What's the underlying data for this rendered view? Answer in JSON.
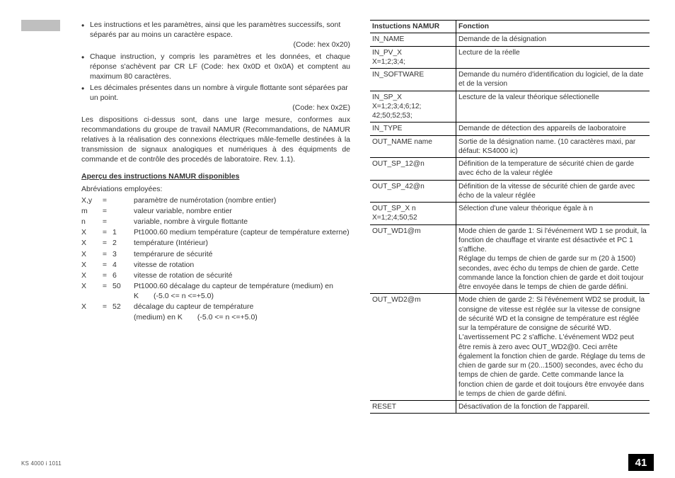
{
  "footer": {
    "doc_id": "KS 4000 i 1011",
    "page_number": "41"
  },
  "left": {
    "bullets": [
      {
        "text": "Les instructions et les paramètres, ainsi que les paramètres successifs, sont séparés par au moins un caractère espace.",
        "code": "(Code: hex 0x20)"
      },
      {
        "text": "Chaque instruction, y compris les paramètres et les données, et chaque réponse s'achèvent par CR LF (Code: hex 0x0D et 0x0A) et comptent au maximum 80 caractères.",
        "code": ""
      },
      {
        "text": "Les décimales présentes dans un nombre à virgule flottante sont séparées par un point.",
        "code": "(Code: hex 0x2E)"
      }
    ],
    "paragraph": "Les dispositions ci-dessus sont, dans une large mesure, conformes aux recommandations du groupe de travail NAMUR (Recommandations, de NAMUR relatives à la réalisation des connexions électriques mâle-femelle destinées à la transmission de signaux analogiques et numériques à des équipments de commande et de contrôle des procedés de laboratoire. Rev. 1.1).",
    "heading": "Aperçu des instructions NAMUR disponibles",
    "abbr_intro": "Abréviations employées:",
    "abbr_rows": [
      {
        "c1": "X,y",
        "c2": "=",
        "c3": "",
        "c4": "paramètre de numérotation (nombre entier)"
      },
      {
        "c1": "m",
        "c2": "=",
        "c3": "",
        "c4": "valeur variable, nombre entier"
      },
      {
        "c1": "n",
        "c2": "=",
        "c3": "",
        "c4": "variable, nombre à virgule flottante"
      },
      {
        "c1": "X",
        "c2": "=",
        "c3": "1",
        "c4": "Pt1000.60 medium température (capteur de température externe)"
      },
      {
        "c1": "X",
        "c2": "=",
        "c3": "2",
        "c4": "température (Intérieur)"
      },
      {
        "c1": "X",
        "c2": "=",
        "c3": "3",
        "c4": "tempérarure de sécurité"
      },
      {
        "c1": "X",
        "c2": "=",
        "c3": "4",
        "c4": "vitesse de rotation"
      },
      {
        "c1": "X",
        "c2": "=",
        "c3": "6",
        "c4": "vitesse de rotation de sécurité"
      },
      {
        "c1": "X",
        "c2": "=",
        "c3": "50",
        "c4": "Pt1000.60 décalage du capteur de température (medium) en K  (-5.0 <= n <=+5.0)"
      },
      {
        "c1": "X",
        "c2": "=",
        "c3": "52",
        "c4": "décalage du capteur de température\n(medium) en K  (-5.0 <= n <=+5.0)"
      }
    ]
  },
  "right": {
    "header_left": "Instuctions NAMUR",
    "header_right": "Fonction",
    "rows": [
      {
        "cmd": "IN_NAME",
        "desc": "Demande de la désignation"
      },
      {
        "cmd": "IN_PV_X\nX=1;2;3;4;",
        "desc": "Lecture de la réelle"
      },
      {
        "cmd": "IN_SOFTWARE",
        "desc": "Demande du numéro d'identification du logiciel, de la date et de la version"
      },
      {
        "cmd": "IN_SP_X\nX=1;2;3;4;6;12;\n  42;50;52;53;",
        "desc": "Lescture de la valeur théorique sélectionelle"
      },
      {
        "cmd": "IN_TYPE",
        "desc": "Demande de détection des appareils de laoboratoire"
      },
      {
        "cmd": "OUT_NAME name",
        "desc": "Sortie de la désignation name. (10 caractères maxi, par défaut: KS4000 ic)"
      },
      {
        "cmd": "OUT_SP_12@n",
        "desc": "Définition de la temperature de sécurité chien de garde avec écho de la valeur réglée"
      },
      {
        "cmd": "OUT_SP_42@n",
        "desc": "Définition de la vitesse de sécurité chien de garde avec écho de la valeur réglée"
      },
      {
        "cmd": "OUT_SP_X n\nX=1;2;4;50;52",
        "desc": "Sélection d'une valeur théorique égale à n"
      },
      {
        "cmd": "OUT_WD1@m",
        "desc": "Mode chien de garde 1: Si l'événement WD 1 se produit, la fonction de chauffage et virante est désactivée et PC 1 s'affiche.\nRéglage du temps de chien de garde sur m (20 à 1500) secondes, avec écho du temps de chien de garde. Cette commande lance la fonction chien de garde et doit toujour être envoyée dans le temps de chien de garde défini."
      },
      {
        "cmd": "OUT_WD2@m",
        "desc": "Mode chien de garde 2: Si l'événement WD2 se produit, la consigne de vitesse est réglée sur la vitesse de consigne de sécurité WD et la consigne de température est réglée sur la température de consigne de sécurité WD. L'avertissement PC 2 s'affiche. L'événement WD2 peut être remis à zero avec OUT_WD2@0. Ceci arrête également la fonction chien de garde. Réglage du tems de chien de garde sur m (20...1500) secondes, avec écho du temps de chien de garde. Cette commande lance la fonction chien de garde et doit toujours être envoyée dans le temps de chien de garde défini."
      },
      {
        "cmd": "RESET",
        "desc": "Désactivation de la fonction de l'appareil."
      }
    ]
  }
}
